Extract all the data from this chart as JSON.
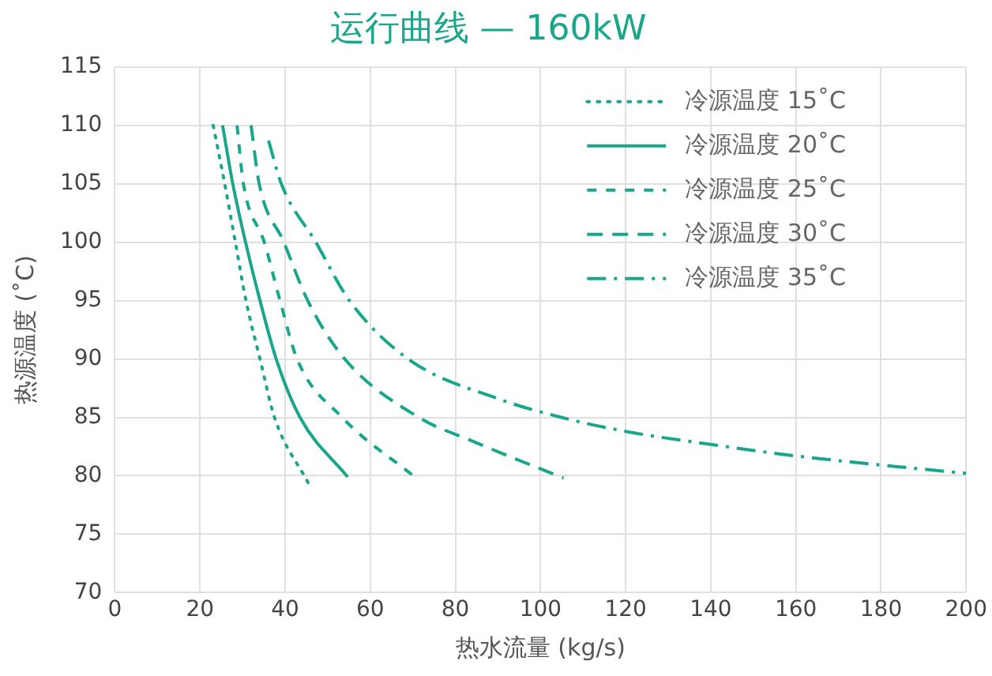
{
  "chart_data": {
    "type": "line",
    "title": "运行曲线 — 160kW",
    "xlabel": "热水流量 (kg/s)",
    "ylabel": "热源温度 (˚C)",
    "xlim": [
      0,
      200
    ],
    "xticks": [
      0,
      20,
      40,
      60,
      80,
      100,
      120,
      140,
      160,
      180,
      200
    ],
    "ylim": [
      70,
      115
    ],
    "yticks": [
      70,
      75,
      80,
      85,
      90,
      95,
      100,
      105,
      110,
      115
    ],
    "grid": true,
    "legend": "top right",
    "marker": "none",
    "series": [
      {
        "name": "冷源温度 15˚C",
        "color": "#1aa68a",
        "line_style": "dotted",
        "x": [
          23.1,
          25.8,
          28.3,
          30.8,
          34.1,
          37.5,
          45.4
        ],
        "values": [
          110,
          105,
          100,
          95,
          90,
          85,
          79.4
        ]
      },
      {
        "name": "冷源温度 20˚C",
        "color": "#1aa68a",
        "line_style": "solid",
        "x": [
          25.3,
          27.7,
          30.7,
          34.1,
          37.9,
          43.5,
          54.7
        ],
        "values": [
          110,
          105,
          100,
          95,
          90,
          85,
          79.9
        ]
      },
      {
        "name": "冷源温度 25˚C",
        "color": "#1aa68a",
        "line_style": "dashed",
        "x": [
          28.7,
          30.2,
          35.1,
          38.8,
          42.8,
          53.4,
          70.8
        ],
        "values": [
          110,
          105,
          100,
          95,
          90,
          85,
          79.8
        ]
      },
      {
        "name": "冷源温度 30˚C",
        "color": "#1aa68a",
        "line_style": "dashed",
        "x": [
          32,
          33.9,
          39.7,
          45.3,
          54,
          71.4,
          83.8,
          105.4
        ],
        "values": [
          110,
          105,
          100,
          95,
          90,
          85,
          83,
          79.8
        ]
      },
      {
        "name": "冷源温度 35˚C",
        "color": "#1aa68a",
        "line_style": "dashdot",
        "x": [
          36.1,
          39.1,
          47.2,
          55.1,
          68.9,
          90,
          104.9,
          120,
          139.7,
          160,
          200
        ],
        "values": [
          108.7,
          105,
          100,
          95,
          90,
          86.6,
          85,
          83.8,
          82.7,
          81.7,
          80.2
        ]
      }
    ]
  }
}
